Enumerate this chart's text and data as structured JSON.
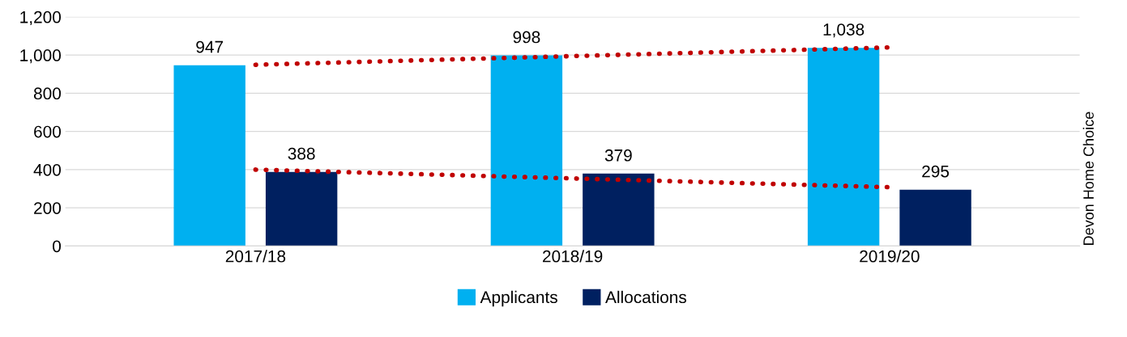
{
  "chart_data": {
    "type": "bar",
    "categories": [
      "2017/18",
      "2018/19",
      "2019/20"
    ],
    "series": [
      {
        "name": "Applicants",
        "color": "#00b0f0",
        "values": [
          947,
          998,
          1038
        ],
        "value_labels": [
          "947",
          "998",
          "1,038"
        ]
      },
      {
        "name": "Allocations",
        "color": "#002060",
        "values": [
          388,
          379,
          295
        ],
        "value_labels": [
          "388",
          "379",
          "295"
        ]
      },
      {
        "type": "line",
        "color": "#c00000",
        "x": [
          "2017/18",
          "2019/20"
        ],
        "values": [
          949,
          1040
        ],
        "line_style": "dotted",
        "marker": "none"
      },
      {
        "type": "line",
        "color": "#c00000",
        "x": [
          "2017/18",
          "2019/20"
        ],
        "values": [
          400,
          308
        ],
        "line_style": "dotted",
        "marker": "none"
      }
    ],
    "ylim": [
      0,
      1200
    ],
    "yticks": [
      0,
      200,
      400,
      600,
      800,
      {
        "value": 1000,
        "label": "1,000"
      },
      {
        "value": 1200,
        "label": "1,200"
      }
    ],
    "grid": "y",
    "legend": "bottom",
    "annotations": [
      "Devon Home Choice"
    ]
  }
}
